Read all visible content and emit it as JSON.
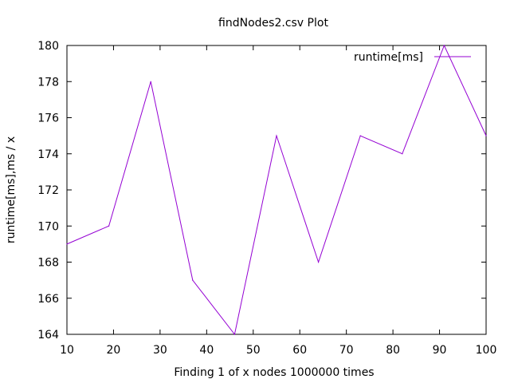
{
  "chart_data": {
    "type": "line",
    "title": "findNodes2.csv Plot",
    "xlabel": "Finding 1 of x nodes 1000000 times",
    "ylabel": "runtime[ms],ms / x",
    "xlim": [
      10,
      100
    ],
    "ylim": [
      164,
      180
    ],
    "xticks": [
      10,
      20,
      30,
      40,
      50,
      60,
      70,
      80,
      90,
      100
    ],
    "yticks": [
      164,
      166,
      168,
      170,
      172,
      174,
      176,
      178,
      180
    ],
    "grid": false,
    "legend_position": "top-right",
    "series": [
      {
        "name": "runtime[ms]",
        "color": "#9400d3",
        "x": [
          10,
          19,
          28,
          37,
          46,
          55,
          64,
          73,
          82,
          91,
          100
        ],
        "y": [
          169,
          170,
          178,
          167,
          164,
          175,
          168,
          175,
          174,
          180,
          175
        ]
      }
    ]
  }
}
